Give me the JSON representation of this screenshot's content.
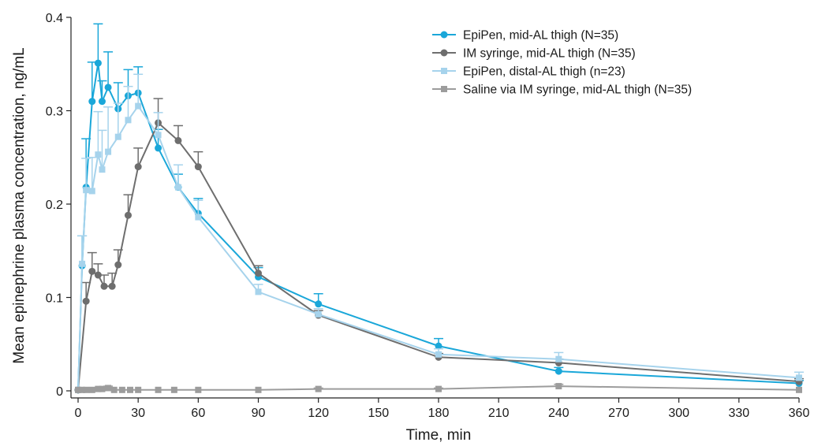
{
  "chart_data": {
    "type": "line",
    "title": "",
    "xlabel": "Time, min",
    "ylabel": "Mean epinephrine plasma concentration, ng/mL",
    "xlim": [
      0,
      360
    ],
    "ylim": [
      0,
      0.4
    ],
    "xticks": [
      0,
      30,
      60,
      90,
      120,
      150,
      180,
      210,
      240,
      270,
      300,
      330,
      360
    ],
    "yticks": [
      0,
      0.1,
      0.2,
      0.3,
      0.4
    ],
    "ytick_labels": [
      "0",
      "0.1",
      "0.2",
      "0.3",
      "0.4"
    ],
    "grid": false,
    "legend_position": "top-right",
    "series": [
      {
        "name": "EpiPen, mid-AL thigh (N=35)",
        "color": "#1aa7d9",
        "marker": "circle",
        "x": [
          0,
          2,
          4,
          7,
          10,
          12,
          15,
          20,
          25,
          30,
          40,
          50,
          60,
          90,
          120,
          180,
          240,
          360
        ],
        "y": [
          0.001,
          0.134,
          0.218,
          0.31,
          0.351,
          0.31,
          0.325,
          0.302,
          0.316,
          0.319,
          0.26,
          0.218,
          0.19,
          0.122,
          0.093,
          0.048,
          0.021,
          0.008
        ],
        "err": [
          0,
          0.032,
          0.052,
          0.042,
          0.042,
          0.022,
          0.038,
          0.028,
          0.028,
          0.028,
          0.02,
          0.014,
          0.016,
          0.01,
          0.011,
          0.008,
          0.004,
          0.003
        ]
      },
      {
        "name": "IM syringe, mid-AL thigh (N=35)",
        "color": "#6e6e6e",
        "marker": "circle",
        "x": [
          0,
          4,
          7,
          10,
          13,
          17,
          20,
          25,
          30,
          40,
          50,
          60,
          90,
          120,
          180,
          240,
          360
        ],
        "y": [
          0.001,
          0.096,
          0.128,
          0.124,
          0.112,
          0.112,
          0.135,
          0.188,
          0.24,
          0.287,
          0.268,
          0.24,
          0.126,
          0.081,
          0.036,
          0.03,
          0.01
        ],
        "err": [
          0,
          0.02,
          0.02,
          0.012,
          0.012,
          0.014,
          0.016,
          0.022,
          0.02,
          0.026,
          0.016,
          0.016,
          0.008,
          0.005,
          0.004,
          0.004,
          0.003
        ]
      },
      {
        "name": "EpiPen, distal-AL thigh (n=23)",
        "color": "#a6d3ec",
        "marker": "square",
        "x": [
          0,
          2,
          4,
          7,
          10,
          12,
          15,
          20,
          25,
          30,
          40,
          50,
          60,
          90,
          120,
          180,
          240,
          360
        ],
        "y": [
          0.001,
          0.136,
          0.215,
          0.214,
          0.253,
          0.237,
          0.256,
          0.272,
          0.29,
          0.305,
          0.274,
          0.218,
          0.186,
          0.106,
          0.082,
          0.039,
          0.034,
          0.014
        ],
        "err": [
          0,
          0.03,
          0.034,
          0.036,
          0.046,
          0.042,
          0.048,
          0.036,
          0.036,
          0.034,
          0.024,
          0.024,
          0.018,
          0.008,
          0.006,
          0.006,
          0.007,
          0.006
        ]
      },
      {
        "name": "Saline via IM syringe, mid-AL thigh (N=35)",
        "color": "#9c9c9c",
        "marker": "square",
        "x": [
          0,
          2,
          4,
          7,
          10,
          12,
          15,
          18,
          22,
          26,
          30,
          40,
          48,
          60,
          90,
          120,
          180,
          240,
          360
        ],
        "y": [
          0.001,
          0.001,
          0.001,
          0.001,
          0.002,
          0.002,
          0.003,
          0.001,
          0.001,
          0.001,
          0.001,
          0.001,
          0.001,
          0.001,
          0.001,
          0.002,
          0.002,
          0.005,
          0.001
        ],
        "err": [
          0,
          0,
          0,
          0,
          0.001,
          0.001,
          0.002,
          0,
          0,
          0,
          0,
          0,
          0,
          0,
          0,
          0.001,
          0.001,
          0.002,
          0
        ]
      }
    ]
  }
}
